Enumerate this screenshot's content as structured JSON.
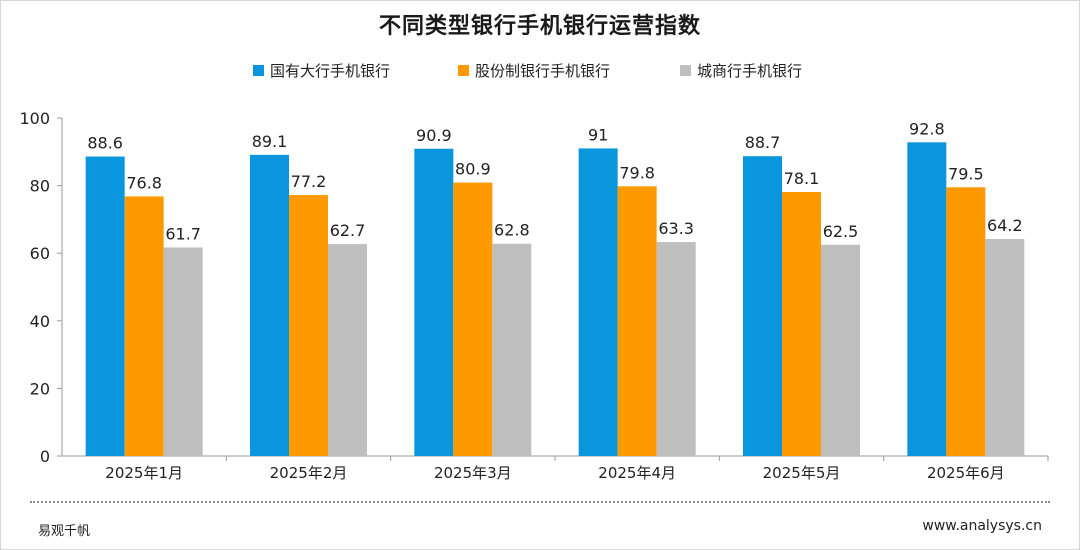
{
  "title": "不同类型银行手机银行运营指数",
  "legend": [
    {
      "label": "国有大行手机银行",
      "color": "#0A96DC"
    },
    {
      "label": "股份制银行手机银行",
      "color": "#FF9900"
    },
    {
      "label": "城商行手机银行",
      "color": "#BFBFBF"
    }
  ],
  "footer": {
    "source": "易观千帆",
    "website": "www.analysys.cn"
  },
  "chart_data": {
    "type": "bar",
    "title": "不同类型银行手机银行运营指数",
    "categories": [
      "2025年1月",
      "2025年2月",
      "2025年3月",
      "2025年4月",
      "2025年5月",
      "2025年6月"
    ],
    "series": [
      {
        "name": "国有大行手机银行",
        "color": "#0A96DC",
        "values": [
          88.6,
          89.1,
          90.9,
          91,
          88.7,
          92.8
        ]
      },
      {
        "name": "股份制银行手机银行",
        "color": "#FF9900",
        "values": [
          76.8,
          77.2,
          80.9,
          79.8,
          78.1,
          79.5
        ]
      },
      {
        "name": "城商行手机银行",
        "color": "#BFBFBF",
        "values": [
          61.7,
          62.7,
          62.8,
          63.3,
          62.5,
          64.2
        ]
      }
    ],
    "ylim": [
      0,
      100
    ],
    "yticks": [
      0,
      20,
      40,
      60,
      80,
      100
    ],
    "grid": false,
    "legend_position": "top"
  }
}
